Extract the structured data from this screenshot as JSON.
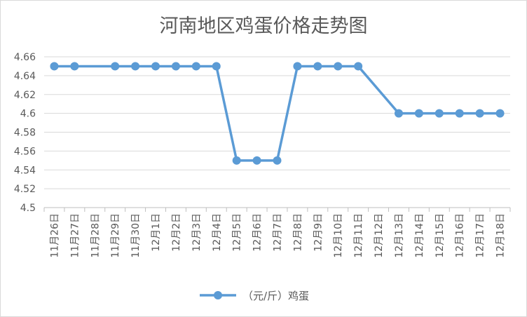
{
  "chart_data": {
    "type": "line",
    "title": "河南地区鸡蛋价格走势图",
    "xlabel": "",
    "ylabel": "",
    "categories": [
      "11月26日",
      "11月27日",
      "11月28日",
      "11月29日",
      "11月30日",
      "12月1日",
      "12月2日",
      "12月3日",
      "12月4日",
      "12月5日",
      "12月6日",
      "12月7日",
      "12月8日",
      "12月9日",
      "12月10日",
      "12月11日",
      "12月12日",
      "12月13日",
      "12月14日",
      "12月15日",
      "12月16日",
      "12月17日",
      "12月18日"
    ],
    "series": [
      {
        "name": "（元/斤）鸡蛋",
        "values": [
          4.65,
          4.65,
          null,
          4.65,
          4.65,
          4.65,
          4.65,
          4.65,
          4.65,
          4.55,
          4.55,
          4.55,
          4.65,
          4.65,
          4.65,
          4.65,
          null,
          4.6,
          4.6,
          4.6,
          4.6,
          4.6,
          4.6
        ]
      }
    ],
    "ylim": [
      4.5,
      4.66
    ],
    "yticks": [
      "4.5",
      "4.52",
      "4.54",
      "4.56",
      "4.58",
      "4.6",
      "4.62",
      "4.64",
      "4.66"
    ],
    "grid": "horizontal",
    "legend": "bottom-center",
    "colors": {
      "series": "#5b9bd5",
      "grid": "#d9d9d9",
      "text": "#595959",
      "axis": "#bfbfbf"
    }
  }
}
